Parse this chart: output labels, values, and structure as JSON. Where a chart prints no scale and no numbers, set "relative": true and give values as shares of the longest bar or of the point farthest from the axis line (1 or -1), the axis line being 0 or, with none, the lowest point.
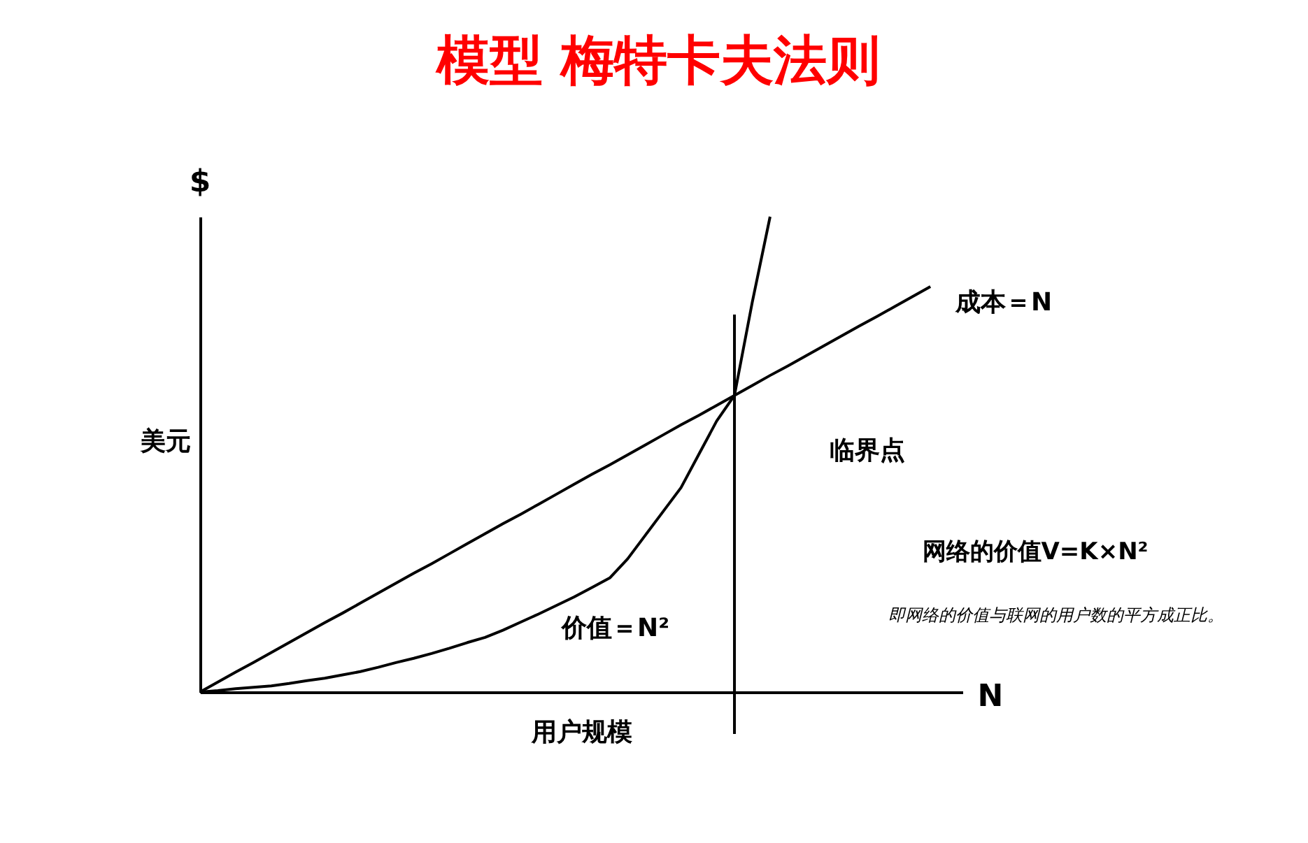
{
  "chart_data": {
    "type": "line",
    "title": "模型 梅特卡夫法则",
    "xlabel": "用户规模",
    "ylabel": "美元",
    "relative": true,
    "grid": false,
    "legend": false,
    "marker": "none",
    "line_style": "solid",
    "categories": [
      null,
      null,
      null,
      null,
      null,
      null,
      null,
      null,
      null,
      null,
      null,
      null,
      null,
      null,
      null,
      null,
      null,
      null,
      null,
      null,
      null,
      null,
      null,
      null,
      null,
      null,
      null,
      null,
      null,
      null,
      null,
      null,
      null,
      null,
      null,
      null,
      null,
      null,
      null,
      null,
      null,
      null
    ],
    "series": [
      {
        "name": "成本＝N",
        "color": "#000000",
        "values": [
          0,
          0.021,
          0.042,
          0.062,
          0.083,
          0.104,
          0.125,
          0.146,
          0.166,
          0.187,
          0.208,
          0.229,
          0.25,
          0.27,
          0.291,
          0.312,
          0.333,
          0.354,
          0.374,
          0.395,
          0.416,
          0.437,
          0.458,
          0.478,
          0.499,
          0.52,
          0.541,
          0.562,
          0.582,
          0.603,
          0.624,
          0.645,
          0.666,
          0.686,
          0.707,
          0.728,
          0.749,
          0.77,
          0.79,
          0.811,
          0.832,
          0.853
        ]
      },
      {
        "name": "价值＝N²",
        "color": "#000000",
        "values": [
          0,
          0.003,
          0.007,
          0.01,
          0.013,
          0.018,
          0.024,
          0.029,
          0.036,
          0.043,
          0.052,
          0.062,
          0.071,
          0.081,
          0.092,
          0.104,
          0.115,
          0.13,
          0.147,
          0.164,
          0.182,
          0.2,
          0.22,
          0.24,
          0.28,
          0.33,
          0.38,
          0.43,
          0.5,
          0.57,
          0.624,
          0.82,
          1.0,
          null,
          null,
          null,
          null,
          null,
          null,
          null,
          null,
          null
        ]
      }
    ],
    "annotations": [
      "$",
      "N",
      "临界点",
      "网络的价值V=K×N²",
      "即网络的价值与联网的用户数的平方成正比。"
    ]
  }
}
